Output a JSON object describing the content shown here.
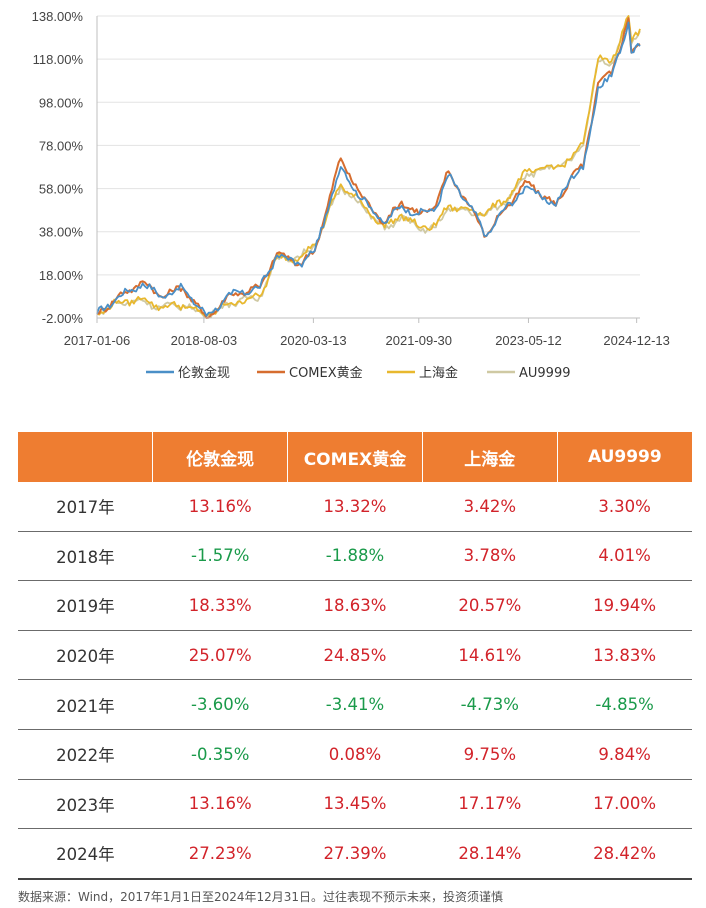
{
  "chart_data": {
    "type": "line",
    "y_ticks": [
      "138.00%",
      "118.00%",
      "98.00%",
      "78.00%",
      "58.00%",
      "38.00%",
      "18.00%",
      "-2.00%"
    ],
    "x_ticks": [
      "2017-01-06",
      "2018-08-03",
      "2020-03-13",
      "2021-09-30",
      "2023-05-12",
      "2024-12-13"
    ],
    "x_range": [
      "2017-01-06",
      "2024-12-31"
    ],
    "ylim": [
      -2,
      138
    ],
    "grid": true,
    "legend_position": "bottom",
    "series": [
      {
        "name": "伦敦金现",
        "color": "#4a8fc7",
        "points": [
          [
            "2017-01-06",
            0
          ],
          [
            "2017-04-20",
            7
          ],
          [
            "2017-09-08",
            14
          ],
          [
            "2017-12-15",
            8
          ],
          [
            "2018-04-13",
            12
          ],
          [
            "2018-08-17",
            -1
          ],
          [
            "2018-12-28",
            9
          ],
          [
            "2019-05-31",
            12
          ],
          [
            "2019-08-30",
            27
          ],
          [
            "2019-12-31",
            23
          ],
          [
            "2020-03-20",
            29
          ],
          [
            "2020-08-07",
            68
          ],
          [
            "2020-11-30",
            53
          ],
          [
            "2021-03-31",
            42
          ],
          [
            "2021-06-30",
            50
          ],
          [
            "2021-09-30",
            46
          ],
          [
            "2021-12-31",
            49
          ],
          [
            "2022-03-08",
            64
          ],
          [
            "2022-06-30",
            50
          ],
          [
            "2022-09-28",
            36
          ],
          [
            "2022-12-30",
            48
          ],
          [
            "2023-05-04",
            59
          ],
          [
            "2023-10-06",
            50
          ],
          [
            "2023-12-29",
            64
          ],
          [
            "2024-03-01",
            67
          ],
          [
            "2024-05-20",
            105
          ],
          [
            "2024-07-31",
            110
          ],
          [
            "2024-10-30",
            135
          ],
          [
            "2024-11-15",
            121
          ],
          [
            "2024-12-31",
            124
          ]
        ]
      },
      {
        "name": "COMEX黄金",
        "color": "#d66d2f",
        "points": [
          [
            "2017-01-06",
            0
          ],
          [
            "2017-04-20",
            7
          ],
          [
            "2017-09-08",
            15
          ],
          [
            "2017-12-15",
            8
          ],
          [
            "2018-04-13",
            12
          ],
          [
            "2018-08-17",
            -2
          ],
          [
            "2018-12-28",
            9
          ],
          [
            "2019-05-31",
            12
          ],
          [
            "2019-08-30",
            28
          ],
          [
            "2019-12-31",
            23
          ],
          [
            "2020-03-20",
            29
          ],
          [
            "2020-08-07",
            72
          ],
          [
            "2020-11-30",
            54
          ],
          [
            "2021-03-31",
            42
          ],
          [
            "2021-06-30",
            52
          ],
          [
            "2021-09-30",
            46
          ],
          [
            "2021-12-31",
            50
          ],
          [
            "2022-03-08",
            66
          ],
          [
            "2022-06-30",
            50
          ],
          [
            "2022-09-28",
            36
          ],
          [
            "2022-12-30",
            48
          ],
          [
            "2023-05-04",
            61
          ],
          [
            "2023-10-06",
            50
          ],
          [
            "2023-12-29",
            64
          ],
          [
            "2024-03-01",
            68
          ],
          [
            "2024-05-20",
            107
          ],
          [
            "2024-07-31",
            111
          ],
          [
            "2024-10-30",
            137
          ],
          [
            "2024-11-15",
            121
          ],
          [
            "2024-12-31",
            125
          ]
        ]
      },
      {
        "name": "上海金",
        "color": "#e8b82e",
        "points": [
          [
            "2017-01-06",
            0
          ],
          [
            "2017-04-20",
            5
          ],
          [
            "2017-09-08",
            7
          ],
          [
            "2017-12-15",
            3
          ],
          [
            "2018-04-13",
            4
          ],
          [
            "2018-08-17",
            -1
          ],
          [
            "2018-12-28",
            5
          ],
          [
            "2019-05-31",
            8
          ],
          [
            "2019-08-30",
            26
          ],
          [
            "2019-12-31",
            26
          ],
          [
            "2020-03-20",
            32
          ],
          [
            "2020-08-07",
            60
          ],
          [
            "2020-11-30",
            51
          ],
          [
            "2021-03-31",
            40
          ],
          [
            "2021-06-30",
            46
          ],
          [
            "2021-09-30",
            40
          ],
          [
            "2021-12-31",
            41
          ],
          [
            "2022-03-08",
            50
          ],
          [
            "2022-06-30",
            48
          ],
          [
            "2022-09-28",
            47
          ],
          [
            "2022-12-30",
            52
          ],
          [
            "2023-05-04",
            66
          ],
          [
            "2023-10-06",
            68
          ],
          [
            "2023-12-29",
            72
          ],
          [
            "2024-03-01",
            79
          ],
          [
            "2024-05-20",
            118
          ],
          [
            "2024-07-31",
            117
          ],
          [
            "2024-10-30",
            138
          ],
          [
            "2024-11-15",
            126
          ],
          [
            "2024-12-31",
            132
          ]
        ]
      },
      {
        "name": "AU9999",
        "color": "#cfc9a3",
        "points": [
          [
            "2017-01-06",
            0
          ],
          [
            "2017-04-20",
            5
          ],
          [
            "2017-09-08",
            6
          ],
          [
            "2017-12-15",
            3
          ],
          [
            "2018-04-13",
            4
          ],
          [
            "2018-08-17",
            -1
          ],
          [
            "2018-12-28",
            5
          ],
          [
            "2019-05-31",
            8
          ],
          [
            "2019-08-30",
            26
          ],
          [
            "2019-12-31",
            26
          ],
          [
            "2020-03-20",
            32
          ],
          [
            "2020-08-07",
            59
          ],
          [
            "2020-11-30",
            50
          ],
          [
            "2021-03-31",
            39
          ],
          [
            "2021-06-30",
            45
          ],
          [
            "2021-09-30",
            39
          ],
          [
            "2021-12-31",
            40
          ],
          [
            "2022-03-08",
            49
          ],
          [
            "2022-06-30",
            47
          ],
          [
            "2022-09-28",
            46
          ],
          [
            "2022-12-30",
            51
          ],
          [
            "2023-05-04",
            65
          ],
          [
            "2023-10-06",
            68
          ],
          [
            "2023-12-29",
            71
          ],
          [
            "2024-03-01",
            78
          ],
          [
            "2024-05-20",
            117
          ],
          [
            "2024-07-31",
            116
          ],
          [
            "2024-10-30",
            137
          ],
          [
            "2024-11-15",
            125
          ],
          [
            "2024-12-31",
            131
          ]
        ]
      }
    ]
  },
  "table": {
    "headers": [
      "",
      "伦敦金现",
      "COMEX黄金",
      "上海金",
      "AU9999"
    ],
    "rows": [
      [
        "2017年",
        "13.16%",
        "13.32%",
        "3.42%",
        "3.30%"
      ],
      [
        "2018年",
        "-1.57%",
        "-1.88%",
        "3.78%",
        "4.01%"
      ],
      [
        "2019年",
        "18.33%",
        "18.63%",
        "20.57%",
        "19.94%"
      ],
      [
        "2020年",
        "25.07%",
        "24.85%",
        "14.61%",
        "13.83%"
      ],
      [
        "2021年",
        "-3.60%",
        "-3.41%",
        "-4.73%",
        "-4.85%"
      ],
      [
        "2022年",
        "-0.35%",
        "0.08%",
        "9.75%",
        "9.84%"
      ],
      [
        "2023年",
        "13.16%",
        "13.45%",
        "17.17%",
        "17.00%"
      ],
      [
        "2024年",
        "27.23%",
        "27.39%",
        "28.14%",
        "28.42%"
      ]
    ],
    "positive_color": "#d2232a",
    "negative_color": "#1a9a4a",
    "header_color": "#ee7d31"
  },
  "note": "数据来源：Wind，2017年1月1日至2024年12月31日。过往表现不预示未来，投资须谨慎"
}
